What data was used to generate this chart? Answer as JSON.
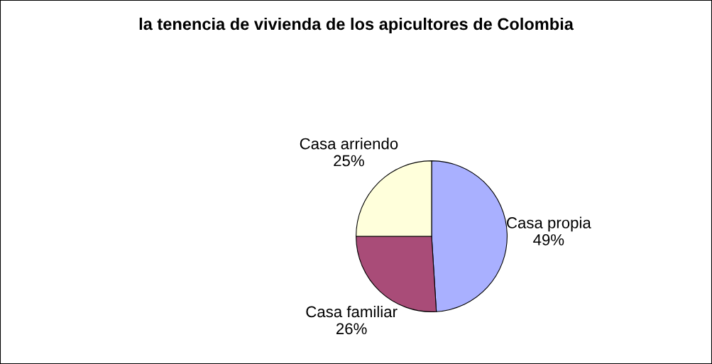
{
  "chart_data": {
    "type": "pie",
    "title": "la tenencia de vivienda de los apicultores de Colombia",
    "categories": [
      "Casa propia",
      "Casa familiar",
      "Casa arriendo"
    ],
    "values": [
      49,
      26,
      25
    ],
    "value_labels": [
      "49%",
      "26%",
      "25%"
    ],
    "colors": [
      "#a9b0ff",
      "#a94c78",
      "#ffffdb"
    ]
  }
}
